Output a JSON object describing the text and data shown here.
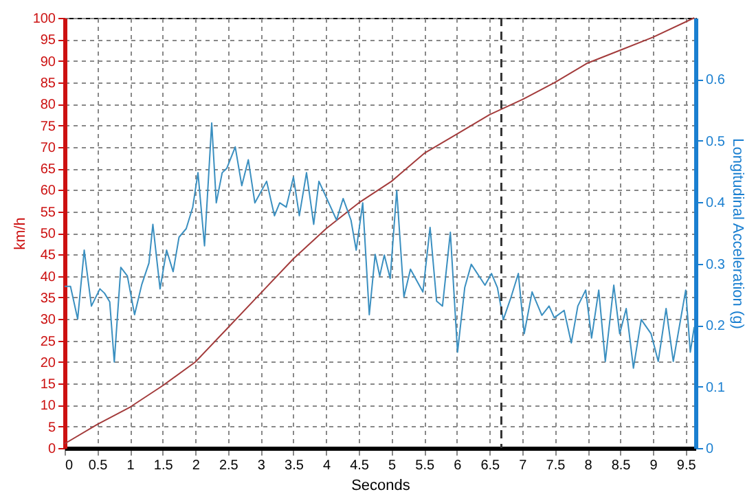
{
  "chart_data": {
    "type": "line",
    "xlabel": "Seconds",
    "ylabel": "km/h",
    "y2label": "Longitudinal Acceleration (g)",
    "xlim": [
      0,
      9.65
    ],
    "xticks": [
      0,
      0.5,
      1,
      1.5,
      2,
      2.5,
      3,
      3.5,
      4,
      4.5,
      5,
      5.5,
      6,
      6.5,
      7,
      7.5,
      8,
      8.5,
      9,
      9.5
    ],
    "ylim": [
      0,
      100
    ],
    "yticks": [
      0,
      5,
      10,
      15,
      20,
      25,
      30,
      35,
      40,
      45,
      50,
      55,
      60,
      65,
      70,
      75,
      80,
      85,
      90,
      95,
      100
    ],
    "y2lim": [
      0,
      0.7
    ],
    "y2ticks": [
      0,
      0.1,
      0.2,
      0.3,
      0.4,
      0.5,
      0.6
    ],
    "grid": true,
    "marker": "none",
    "line_style": "solid",
    "series": [
      {
        "color": "#a33b3b",
        "axis": "y",
        "x": [
          0,
          0.5,
          1,
          1.5,
          2,
          2.5,
          3,
          3.5,
          4,
          4.5,
          5,
          5.5,
          6,
          6.5,
          7,
          7.5,
          8,
          8.5,
          9,
          9.63
        ],
        "values": [
          1,
          5.5,
          9.5,
          14.5,
          20,
          28,
          36,
          44,
          51,
          57,
          62,
          68.5,
          73,
          77.5,
          81,
          85,
          89.5,
          92.5,
          95.5,
          100
        ]
      },
      {
        "color": "#3a8fc0",
        "axis": "y2",
        "x": [
          0,
          0.09,
          0.2,
          0.3,
          0.41,
          0.54,
          0.61,
          0.69,
          0.76,
          0.86,
          0.96,
          1.07,
          1.18,
          1.29,
          1.35,
          1.46,
          1.56,
          1.66,
          1.75,
          1.86,
          1.96,
          2.04,
          2.14,
          2.25,
          2.32,
          2.41,
          2.48,
          2.61,
          2.71,
          2.81,
          2.91,
          3.09,
          3.21,
          3.29,
          3.39,
          3.5,
          3.59,
          3.7,
          3.81,
          3.89,
          4.04,
          4.16,
          4.26,
          4.38,
          4.46,
          4.56,
          4.66,
          4.75,
          4.82,
          4.89,
          4.98,
          5.08,
          5.19,
          5.29,
          5.48,
          5.59,
          5.69,
          5.78,
          5.9,
          6.01,
          6.12,
          6.22,
          6.43,
          6.53,
          6.62,
          6.71,
          6.83,
          6.94,
          7.03,
          7.15,
          7.3,
          7.41,
          7.49,
          7.64,
          7.75,
          7.85,
          7.97,
          8.06,
          8.17,
          8.27,
          8.4,
          8.49,
          8.59,
          8.7,
          8.82,
          8.97,
          9.08,
          9.2,
          9.31,
          9.5,
          9.57,
          9.63
        ],
        "values": [
          0.263,
          0.263,
          0.21,
          0.322,
          0.231,
          0.259,
          0.252,
          0.238,
          0.14,
          0.294,
          0.28,
          0.217,
          0.266,
          0.301,
          0.364,
          0.259,
          0.322,
          0.287,
          0.343,
          0.357,
          0.392,
          0.448,
          0.329,
          0.529,
          0.399,
          0.448,
          0.455,
          0.49,
          0.427,
          0.469,
          0.399,
          0.434,
          0.378,
          0.399,
          0.392,
          0.441,
          0.378,
          0.448,
          0.364,
          0.434,
          0.399,
          0.371,
          0.406,
          0.371,
          0.322,
          0.399,
          0.217,
          0.315,
          0.28,
          0.314,
          0.276,
          0.419,
          0.246,
          0.291,
          0.254,
          0.359,
          0.239,
          0.231,
          0.351,
          0.156,
          0.261,
          0.299,
          0.265,
          0.284,
          0.261,
          0.209,
          0.246,
          0.284,
          0.186,
          0.254,
          0.216,
          0.231,
          0.212,
          0.224,
          0.171,
          0.231,
          0.257,
          0.179,
          0.257,
          0.141,
          0.265,
          0.186,
          0.227,
          0.13,
          0.209,
          0.186,
          0.141,
          0.227,
          0.141,
          0.257,
          0.156,
          0.197
        ]
      }
    ],
    "ref_lines": [
      {
        "axis": "x",
        "value": 6.68,
        "color": "#333333",
        "line_style": "dashed"
      }
    ]
  }
}
